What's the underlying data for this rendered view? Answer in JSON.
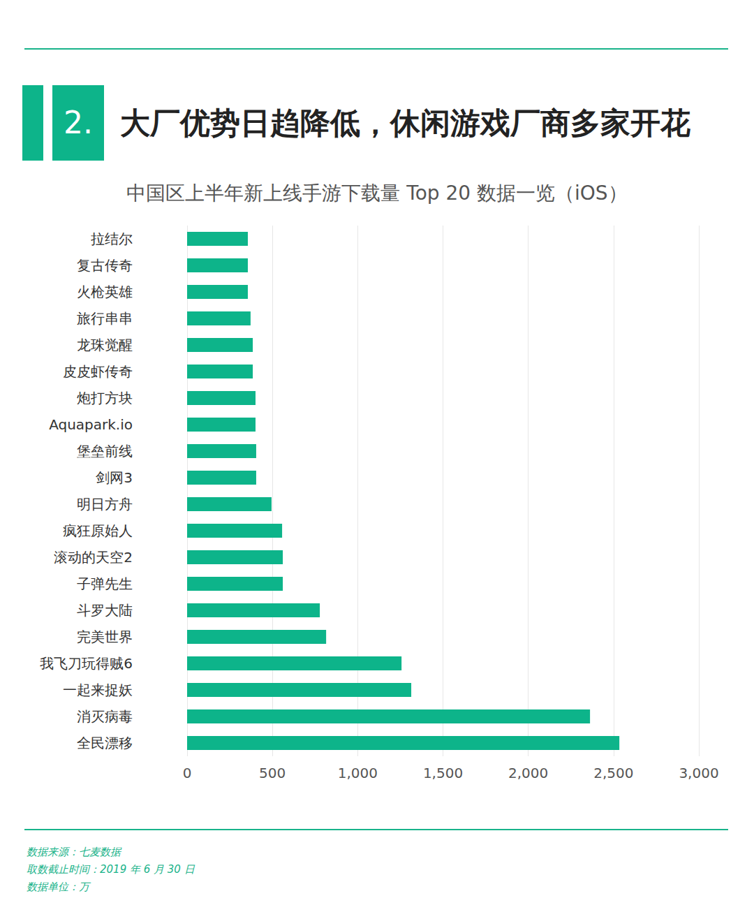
{
  "header": {
    "number": "2.",
    "title": "大厂优势日趋降低，休闲游戏厂商多家开花"
  },
  "chart_data": {
    "type": "bar",
    "title": "中国区上半年新上线手游下载量 Top 20 数据一览（iOS）",
    "orientation": "horizontal",
    "categories": [
      "拉结尔",
      "复古传奇",
      "火枪英雄",
      "旅行串串",
      "龙珠觉醒",
      "皮皮虾传奇",
      "炮打方块",
      "Aquapark.io",
      "堡垒前线",
      "剑网3",
      "明日方舟",
      "疯狂原始人",
      "滚动的天空2",
      "子弹先生",
      "斗罗大陆",
      "完美世界",
      "我飞刀玩得贼6",
      "一起来捉妖",
      "消灭病毒",
      "全民漂移"
    ],
    "values": [
      356,
      356,
      356,
      372,
      385,
      385,
      401,
      401,
      405,
      405,
      495,
      557,
      561,
      561,
      778,
      815,
      1257,
      1314,
      2362,
      2534
    ],
    "color": "#0db48a",
    "xlim": [
      0,
      3000
    ],
    "xticks": [
      0,
      500,
      1000,
      1500,
      2000,
      2500,
      3000
    ],
    "grid": true
  },
  "footer": {
    "notes": [
      "数据来源：七麦数据",
      "取数截止时间：2019 年 6 月 30 日",
      "数据单位：万"
    ]
  }
}
